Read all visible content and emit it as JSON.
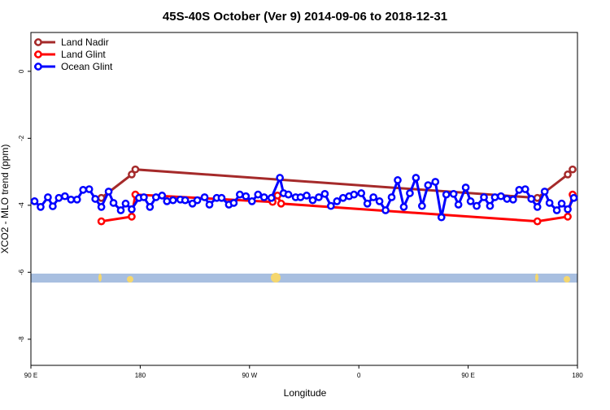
{
  "chart_data": {
    "type": "line",
    "title": "45S-40S October (Ver 9)   2014-09-06 to 2018-12-31",
    "xlabel": "Longitude",
    "ylabel": "XCO2 - MLO trend (ppm)",
    "xlim": [
      90,
      540
    ],
    "ylim": [
      -8.78,
      1.16
    ],
    "xticks": [
      {
        "value": 90,
        "label": "90 E"
      },
      {
        "value": 180,
        "label": "180"
      },
      {
        "value": 270,
        "label": "90 W"
      },
      {
        "value": 360,
        "label": "0"
      },
      {
        "value": 450,
        "label": "90 E"
      },
      {
        "value": 540,
        "label": "180"
      }
    ],
    "yticks": [
      0,
      -2,
      -4,
      -6,
      -8
    ],
    "legend": "top-left",
    "series": [
      {
        "name": "Land Nadir",
        "color": "#a52a2a",
        "x": [
          148,
          173,
          176,
          507,
          532,
          536
        ],
        "values": [
          -3.78,
          -3.08,
          -2.93,
          -3.78,
          -3.08,
          -2.93
        ]
      },
      {
        "name": "Land Glint",
        "color": "#ff0000",
        "x": [
          148,
          173,
          176,
          289,
          293,
          296,
          507,
          532,
          536
        ],
        "values": [
          -4.48,
          -4.34,
          -3.68,
          -3.9,
          -3.71,
          -3.95,
          -4.48,
          -4.34,
          -3.68
        ]
      },
      {
        "name": "Ocean Glint",
        "color": "#0000ff",
        "x": [
          93,
          98,
          104,
          108,
          113,
          118,
          123,
          128,
          133,
          138,
          143,
          148,
          154,
          158,
          164,
          168,
          173,
          179,
          183,
          188,
          193,
          198,
          202,
          207,
          213,
          217,
          223,
          227,
          233,
          237,
          243,
          247,
          253,
          257,
          262,
          267,
          272,
          277,
          282,
          288,
          295,
          298,
          302,
          308,
          312,
          317,
          322,
          327,
          332,
          337,
          342,
          347,
          352,
          356,
          362,
          367,
          372,
          377,
          382,
          387,
          392,
          397,
          402,
          407,
          412,
          417,
          423,
          428,
          432,
          438,
          442,
          448,
          452,
          457,
          463,
          468,
          472,
          477,
          482,
          487,
          492,
          497,
          502,
          507,
          513,
          517,
          523,
          527,
          532,
          537
        ],
        "values": [
          -3.88,
          -4.05,
          -3.76,
          -4.03,
          -3.78,
          -3.73,
          -3.83,
          -3.83,
          -3.54,
          -3.52,
          -3.81,
          -4.05,
          -3.59,
          -3.93,
          -4.15,
          -3.95,
          -4.12,
          -3.78,
          -3.76,
          -4.05,
          -3.76,
          -3.71,
          -3.88,
          -3.85,
          -3.83,
          -3.85,
          -3.95,
          -3.85,
          -3.76,
          -3.98,
          -3.78,
          -3.78,
          -3.98,
          -3.93,
          -3.68,
          -3.73,
          -3.88,
          -3.68,
          -3.76,
          -3.78,
          -3.18,
          -3.64,
          -3.68,
          -3.76,
          -3.76,
          -3.71,
          -3.85,
          -3.76,
          -3.66,
          -4.02,
          -3.88,
          -3.78,
          -3.73,
          -3.68,
          -3.64,
          -3.95,
          -3.76,
          -3.88,
          -4.15,
          -3.76,
          -3.25,
          -4.05,
          -3.64,
          -3.18,
          -4.02,
          -3.4,
          -3.3,
          -4.36,
          -3.68,
          -3.66,
          -3.98,
          -3.47,
          -3.88,
          -4.02,
          -3.76,
          -4.02,
          -3.76,
          -3.73,
          -3.81,
          -3.83,
          -3.54,
          -3.52,
          -3.81,
          -4.05,
          -3.59,
          -3.93,
          -4.15,
          -3.95,
          -4.12,
          -3.78
        ]
      }
    ]
  }
}
